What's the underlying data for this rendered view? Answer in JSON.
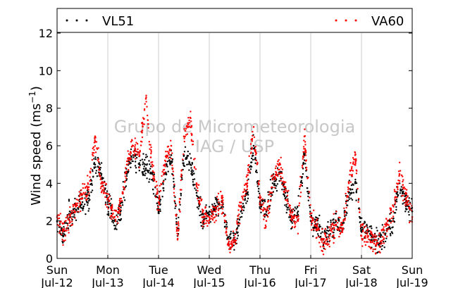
{
  "chart_data": {
    "type": "scatter",
    "ylabel": "Wind speed (ms",
    "ylabel_sup": "−1",
    "ylabel_close": ")",
    "ylim": [
      0,
      12
    ],
    "yticks": [
      0,
      2,
      4,
      6,
      8,
      10,
      12
    ],
    "xlim": [
      "2015-07-12",
      "2015-07-19"
    ],
    "xticks": [
      {
        "date": "2015-07-12",
        "day": "Sun",
        "label": "Jul-12"
      },
      {
        "date": "2015-07-13",
        "day": "Mon",
        "label": "Jul-13"
      },
      {
        "date": "2015-07-14",
        "day": "Tue",
        "label": "Jul-14"
      },
      {
        "date": "2015-07-15",
        "day": "Wed",
        "label": "Jul-15"
      },
      {
        "date": "2015-07-16",
        "day": "Thu",
        "label": "Jul-16"
      },
      {
        "date": "2015-07-17",
        "day": "Fri",
        "label": "Jul-17"
      },
      {
        "date": "2015-07-18",
        "day": "Sat",
        "label": "Jul-18"
      },
      {
        "date": "2015-07-19",
        "day": "Sun",
        "label": "Jul-19"
      }
    ],
    "grid": "vertical",
    "legend_position": "top",
    "watermark": [
      "Grupo de Micrometeorologia",
      "IAG / USP"
    ],
    "series": [
      {
        "name": "VL51",
        "color": "#000000",
        "x": [
          "2015-07-12 00:00",
          "2015-07-12 03:00",
          "2015-07-12 06:00",
          "2015-07-12 09:00",
          "2015-07-12 12:00",
          "2015-07-12 15:00",
          "2015-07-12 18:00",
          "2015-07-12 21:00",
          "2015-07-13 00:00",
          "2015-07-13 03:00",
          "2015-07-13 06:00",
          "2015-07-13 09:00",
          "2015-07-13 12:00",
          "2015-07-13 15:00",
          "2015-07-13 18:00",
          "2015-07-13 21:00",
          "2015-07-14 00:00",
          "2015-07-14 03:00",
          "2015-07-14 06:00",
          "2015-07-14 09:00",
          "2015-07-14 12:00",
          "2015-07-14 15:00",
          "2015-07-14 18:00",
          "2015-07-14 21:00",
          "2015-07-15 00:00",
          "2015-07-15 03:00",
          "2015-07-15 06:00",
          "2015-07-15 09:00",
          "2015-07-15 12:00",
          "2015-07-15 15:00",
          "2015-07-15 18:00",
          "2015-07-15 21:00",
          "2015-07-16 00:00",
          "2015-07-16 03:00",
          "2015-07-16 06:00",
          "2015-07-16 09:00",
          "2015-07-16 12:00",
          "2015-07-16 15:00",
          "2015-07-16 18:00",
          "2015-07-16 21:00",
          "2015-07-17 00:00",
          "2015-07-17 03:00",
          "2015-07-17 06:00",
          "2015-07-17 09:00",
          "2015-07-17 12:00",
          "2015-07-17 15:00",
          "2015-07-17 18:00",
          "2015-07-17 21:00",
          "2015-07-18 00:00",
          "2015-07-18 03:00",
          "2015-07-18 06:00",
          "2015-07-18 09:00",
          "2015-07-18 12:00",
          "2015-07-18 15:00",
          "2015-07-18 18:00",
          "2015-07-18 21:00",
          "2015-07-19 00:00"
        ],
        "y": [
          2.0,
          1.2,
          2.5,
          2.6,
          3.0,
          3.2,
          5.0,
          4.5,
          3.0,
          2.0,
          2.5,
          4.5,
          5.5,
          5.0,
          4.8,
          4.5,
          2.5,
          4.5,
          5.5,
          1.2,
          5.5,
          5.0,
          3.5,
          2.0,
          2.5,
          2.8,
          3.0,
          0.8,
          1.0,
          2.5,
          3.5,
          6.0,
          3.0,
          2.5,
          4.0,
          4.5,
          3.5,
          2.0,
          2.5,
          5.5,
          2.0,
          1.8,
          1.0,
          1.5,
          2.0,
          1.5,
          3.5,
          4.0,
          1.5,
          1.5,
          1.0,
          0.8,
          1.5,
          2.0,
          4.0,
          3.0,
          2.5
        ]
      },
      {
        "name": "VA60",
        "color": "#ff0000",
        "x": [
          "2015-07-12 00:00",
          "2015-07-12 03:00",
          "2015-07-12 06:00",
          "2015-07-12 09:00",
          "2015-07-12 12:00",
          "2015-07-12 15:00",
          "2015-07-12 18:00",
          "2015-07-12 21:00",
          "2015-07-13 00:00",
          "2015-07-13 03:00",
          "2015-07-13 06:00",
          "2015-07-13 09:00",
          "2015-07-13 12:00",
          "2015-07-13 15:00",
          "2015-07-13 18:00",
          "2015-07-13 21:00",
          "2015-07-14 00:00",
          "2015-07-14 03:00",
          "2015-07-14 06:00",
          "2015-07-14 09:00",
          "2015-07-14 12:00",
          "2015-07-14 15:00",
          "2015-07-14 18:00",
          "2015-07-14 21:00",
          "2015-07-15 00:00",
          "2015-07-15 03:00",
          "2015-07-15 06:00",
          "2015-07-15 09:00",
          "2015-07-15 12:00",
          "2015-07-15 15:00",
          "2015-07-15 18:00",
          "2015-07-15 21:00",
          "2015-07-16 00:00",
          "2015-07-16 03:00",
          "2015-07-16 06:00",
          "2015-07-16 09:00",
          "2015-07-16 12:00",
          "2015-07-16 15:00",
          "2015-07-16 18:00",
          "2015-07-16 21:00",
          "2015-07-17 00:00",
          "2015-07-17 03:00",
          "2015-07-17 06:00",
          "2015-07-17 09:00",
          "2015-07-17 12:00",
          "2015-07-17 15:00",
          "2015-07-17 18:00",
          "2015-07-17 21:00",
          "2015-07-18 00:00",
          "2015-07-18 03:00",
          "2015-07-18 06:00",
          "2015-07-18 09:00",
          "2015-07-18 12:00",
          "2015-07-18 15:00",
          "2015-07-18 18:00",
          "2015-07-18 21:00",
          "2015-07-19 00:00"
        ],
        "y": [
          2.2,
          1.5,
          2.0,
          2.8,
          3.2,
          3.8,
          6.5,
          4.0,
          3.2,
          2.2,
          2.8,
          5.0,
          6.0,
          5.5,
          8.5,
          5.0,
          3.0,
          5.0,
          6.0,
          1.0,
          6.5,
          7.5,
          4.0,
          2.2,
          2.2,
          2.5,
          3.2,
          0.7,
          0.9,
          2.8,
          4.0,
          7.0,
          3.2,
          2.0,
          4.2,
          5.0,
          3.8,
          2.2,
          2.0,
          6.5,
          2.2,
          1.5,
          0.8,
          1.2,
          1.8,
          1.5,
          4.0,
          5.5,
          1.2,
          1.2,
          0.8,
          0.9,
          1.8,
          2.5,
          4.5,
          3.2,
          2.2
        ]
      }
    ]
  }
}
